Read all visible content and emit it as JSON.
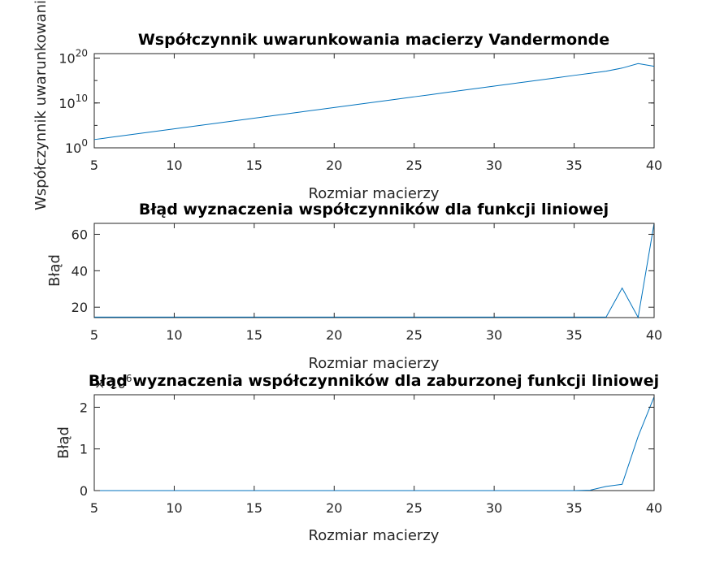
{
  "colors": {
    "series": "#0072bd",
    "axes": "#262626"
  },
  "chart_data": [
    {
      "type": "line",
      "title": "Współczynnik uwarunkowania macierzy Vandermonde",
      "xlabel": "Rozmiar macierzy",
      "ylabel": "Współczynnik uwarunkowania",
      "xlim": [
        5,
        40
      ],
      "ylim": [
        1,
        1e+21
      ],
      "yscale": "log",
      "grid": false,
      "xticks": [
        5,
        10,
        15,
        20,
        25,
        30,
        35,
        40
      ],
      "xtick_labels": [
        "5",
        "10",
        "15",
        "20",
        "25",
        "30",
        "35",
        "40"
      ],
      "yticks": [
        {
          "value": 1,
          "base": "10",
          "exp": "0"
        },
        {
          "value": 10000000000.0,
          "base": "10",
          "exp": "10"
        },
        {
          "value": 1e+20,
          "base": "10",
          "exp": "20"
        }
      ],
      "x": [
        5,
        6,
        7,
        8,
        9,
        10,
        11,
        12,
        13,
        14,
        15,
        16,
        17,
        18,
        19,
        20,
        21,
        22,
        23,
        24,
        25,
        26,
        27,
        28,
        29,
        30,
        31,
        32,
        33,
        34,
        35,
        36,
        37,
        38,
        39,
        40
      ],
      "values": [
        70.0,
        210.0,
        630.0,
        1900.0,
        5600.0,
        17000.0,
        50000.0,
        150000.0,
        450000.0,
        1350000.0,
        4000000.0,
        12000000.0,
        36000000.0,
        108000000.0,
        320000000.0,
        960000000.0,
        2900000000.0,
        8700000000.0,
        26000000000.0,
        78000000000.0,
        235000000000.0,
        700000000000.0,
        2100000000000.0,
        6300000000000.0,
        19000000000000.0,
        57000000000000.0,
        170000000000000.0,
        510000000000000.0,
        1500000000000000.0,
        4600000000000000.0,
        1.4e+16,
        4.1e+16,
        1.2e+17,
        6e+17,
        6e+18,
        1.5e+18
      ]
    },
    {
      "type": "line",
      "title": "Błąd wyznaczenia współczynników dla funkcji liniowej",
      "xlabel": "Rozmiar macierzy",
      "ylabel": "Błąd",
      "xlim": [
        5,
        40
      ],
      "ylim": [
        14.3,
        66
      ],
      "grid": false,
      "xticks": [
        5,
        10,
        15,
        20,
        25,
        30,
        35,
        40
      ],
      "xtick_labels": [
        "5",
        "10",
        "15",
        "20",
        "25",
        "30",
        "35",
        "40"
      ],
      "yticks": [
        20,
        40,
        60
      ],
      "ytick_labels": [
        "20",
        "40",
        "60"
      ],
      "x": [
        5,
        6,
        7,
        8,
        9,
        10,
        11,
        12,
        13,
        14,
        15,
        16,
        17,
        18,
        19,
        20,
        21,
        22,
        23,
        24,
        25,
        26,
        27,
        28,
        29,
        30,
        31,
        32,
        33,
        34,
        35,
        36,
        37,
        38,
        39,
        40
      ],
      "values": [
        14.6,
        14.6,
        14.6,
        14.6,
        14.6,
        14.6,
        14.6,
        14.6,
        14.6,
        14.6,
        14.6,
        14.6,
        14.6,
        14.6,
        14.6,
        14.6,
        14.6,
        14.6,
        14.6,
        14.6,
        14.6,
        14.6,
        14.6,
        14.6,
        14.6,
        14.6,
        14.6,
        14.6,
        14.6,
        14.6,
        14.6,
        14.6,
        14.6,
        30.5,
        14.4,
        66
      ]
    },
    {
      "type": "line",
      "title": "Błąd wyznaczenia współczynników dla zaburzonej funkcji liniowej",
      "xlabel": "Rozmiar macierzy",
      "ylabel": "Błąd",
      "xlim": [
        5,
        40
      ],
      "ylim": [
        0,
        2.3
      ],
      "grid": false,
      "multiplier_base": "× 10",
      "multiplier_exp": "6",
      "xticks": [
        5,
        10,
        15,
        20,
        25,
        30,
        35,
        40
      ],
      "xtick_labels": [
        "5",
        "10",
        "15",
        "20",
        "25",
        "30",
        "35",
        "40"
      ],
      "yticks": [
        0,
        1,
        2
      ],
      "ytick_labels": [
        "0",
        "1",
        "2"
      ],
      "x": [
        5,
        6,
        7,
        8,
        9,
        10,
        11,
        12,
        13,
        14,
        15,
        16,
        17,
        18,
        19,
        20,
        21,
        22,
        23,
        24,
        25,
        26,
        27,
        28,
        29,
        30,
        31,
        32,
        33,
        34,
        35,
        36,
        37,
        38,
        39,
        40
      ],
      "values": [
        0,
        0,
        0,
        0,
        0,
        0,
        0,
        0,
        0,
        0,
        0,
        0,
        0,
        0,
        0,
        0,
        0,
        0,
        0,
        0,
        0,
        0,
        0,
        0,
        0,
        0,
        0,
        0,
        0,
        0,
        0,
        0.01,
        0.1,
        0.15,
        1.3,
        2.25
      ]
    }
  ]
}
